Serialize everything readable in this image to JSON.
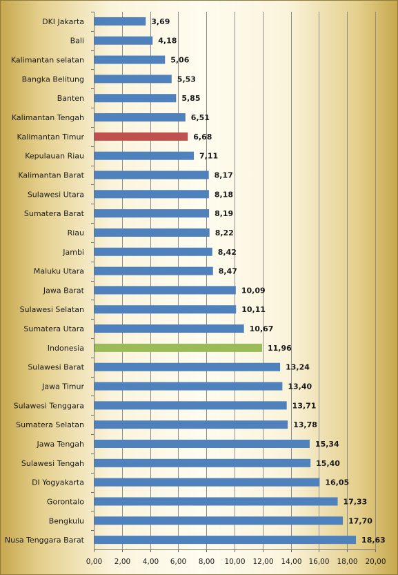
{
  "chart_data": {
    "type": "bar",
    "orientation": "horizontal",
    "categories": [
      "DKI Jakarta",
      "Bali",
      "Kalimantan selatan",
      "Bangka Belitung",
      "Banten",
      "Kalimantan Tengah",
      "Kalimantan Timur",
      "Kepulauan Riau",
      "Kalimantan Barat",
      "Sulawesi Utara",
      "Sumatera Barat",
      "Riau",
      "Jambi",
      "Maluku Utara",
      "Jawa Barat",
      "Sulawesi Selatan",
      "Sumatera Utara",
      "Indonesia",
      "Sulawesi Barat",
      "Jawa Timur",
      "Sulawesi Tenggara",
      "Sumatera Selatan",
      "Jawa Tengah",
      "Sulawesi Tengah",
      "DI Yogyakarta",
      "Gorontalo",
      "Bengkulu",
      "Nusa Tenggara Barat"
    ],
    "values": [
      3.69,
      4.18,
      5.06,
      5.53,
      5.85,
      6.51,
      6.68,
      7.11,
      8.17,
      8.18,
      8.19,
      8.22,
      8.42,
      8.47,
      10.09,
      10.11,
      10.67,
      11.96,
      13.24,
      13.4,
      13.71,
      13.78,
      15.34,
      15.4,
      16.05,
      17.33,
      17.7,
      18.63
    ],
    "value_labels": [
      "3,69",
      "4,18",
      "5,06",
      "5,53",
      "5,85",
      "6,51",
      "6,68",
      "7,11",
      "8,17",
      "8,18",
      "8,19",
      "8,22",
      "8,42",
      "8,47",
      "10,09",
      "10,11",
      "10,67",
      "11,96",
      "13,24",
      "13,40",
      "13,71",
      "13,78",
      "15,34",
      "15,40",
      "16,05",
      "17,33",
      "17,70",
      "18,63"
    ],
    "bar_colors": {
      "default": "#4f81bd",
      "Kalimantan Timur": "#c0504d",
      "Indonesia": "#9bbb59"
    },
    "x_ticks": [
      "0,00",
      "2,00",
      "4,00",
      "6,00",
      "8,00",
      "10,00",
      "12,00",
      "14,00",
      "16,00",
      "18,00",
      "20,00"
    ],
    "xlim": [
      0,
      20
    ],
    "title": "",
    "xlabel": "",
    "ylabel": "",
    "grid": "vertical",
    "grid_color": "#8c8c8c",
    "legend": "none"
  }
}
